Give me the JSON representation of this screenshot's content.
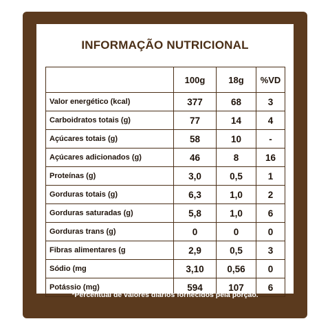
{
  "title": "INFORMAÇÃO NUTRICIONAL",
  "columns": [
    "",
    "100g",
    "18g",
    "%VD"
  ],
  "rows": [
    {
      "label": "Valor energético (kcal)",
      "v100": "377",
      "v18": "68",
      "vd": "3"
    },
    {
      "label": "Carboidratos totais (g)",
      "v100": "77",
      "v18": "14",
      "vd": "4"
    },
    {
      "label": "Açúcares totais (g)",
      "v100": "58",
      "v18": "10",
      "vd": "-"
    },
    {
      "label": "Açúcares adicionados (g)",
      "v100": "46",
      "v18": "8",
      "vd": "16"
    },
    {
      "label": "Proteínas (g)",
      "v100": "3,0",
      "v18": "0,5",
      "vd": "1"
    },
    {
      "label": "Gorduras totais (g)",
      "v100": "6,3",
      "v18": "1,0",
      "vd": "2"
    },
    {
      "label": "Gorduras saturadas (g)",
      "v100": "5,8",
      "v18": "1,0",
      "vd": "6"
    },
    {
      "label": "Gorduras trans (g)",
      "v100": "0",
      "v18": "0",
      "vd": "0"
    },
    {
      "label": "Fibras alimentares (g",
      "v100": "2,9",
      "v18": "0,5",
      "vd": "3"
    },
    {
      "label": "Sódio (mg",
      "v100": "3,10",
      "v18": "0,56",
      "vd": "0"
    },
    {
      "label": "Potássio (mg)",
      "v100": "594",
      "v18": "107",
      "vd": "6"
    }
  ],
  "footnote": "*Percentual de valores diários fornecidos pela porção.",
  "colors": {
    "brand_brown": "#5b3a1e",
    "text_dark": "#1e1209"
  }
}
